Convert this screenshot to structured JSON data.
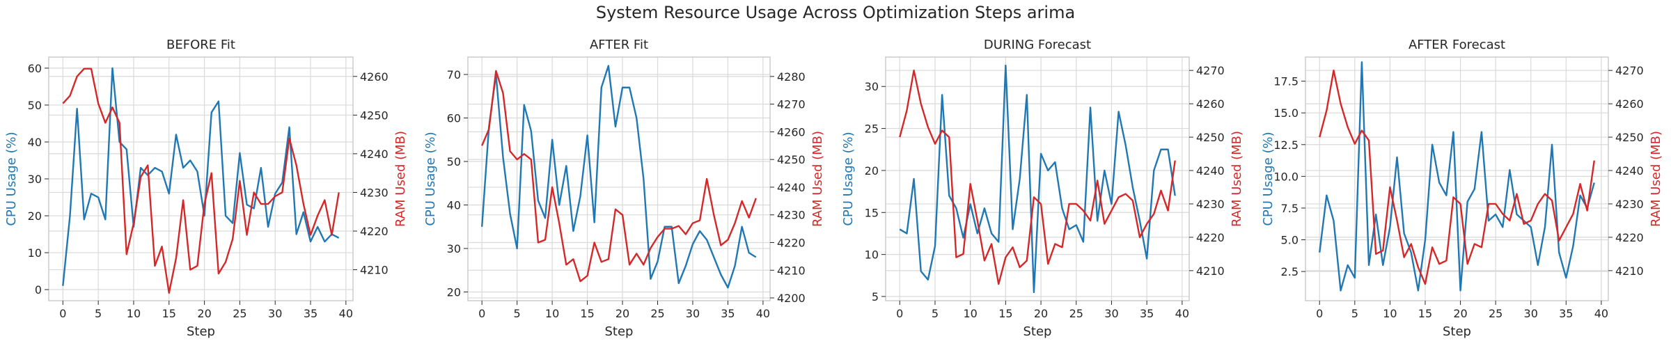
{
  "figure": {
    "title": "System Resource Usage Across Optimization Steps arima"
  },
  "colors": {
    "cpu": "#1f77b4",
    "ram": "#d62728",
    "grid": "#d9d9d9",
    "spine": "#cccccc",
    "text": "#262626"
  },
  "chart_data": [
    {
      "type": "line",
      "title": "BEFORE Fit",
      "xlabel": "Step",
      "ylabel": "CPU Usage (%)",
      "y2label": "RAM Used (MB)",
      "xlim": [
        -2,
        41
      ],
      "ylim": [
        -3,
        63
      ],
      "y2lim": [
        4202,
        4265
      ],
      "xticks": [
        0,
        5,
        10,
        15,
        20,
        25,
        30,
        35,
        40
      ],
      "yticks": [
        0,
        10,
        20,
        30,
        40,
        50,
        60
      ],
      "y2ticks": [
        4210,
        4220,
        4230,
        4240,
        4250,
        4260
      ],
      "grid": true,
      "series": [
        {
          "name": "CPU Usage (%)",
          "axis": "left",
          "values": [
            1,
            20,
            49,
            19,
            26,
            25,
            19,
            60,
            40,
            38,
            17,
            33,
            31,
            33,
            32,
            26,
            42,
            33,
            35,
            32,
            20,
            48,
            51,
            20,
            18,
            37,
            23,
            22,
            33,
            17,
            26,
            29,
            44,
            15,
            21,
            13,
            17,
            13,
            15,
            14
          ]
        },
        {
          "name": "RAM Used (MB)",
          "axis": "right",
          "values": [
            4253,
            4255,
            4260,
            4262,
            4262,
            4253,
            4248,
            4252,
            4248,
            4214,
            4222,
            4234,
            4237,
            4211,
            4216,
            4204,
            4213,
            4228,
            4210,
            4211,
            4227,
            4235,
            4209,
            4212,
            4218,
            4233,
            4219,
            4230,
            4227,
            4227,
            4229,
            4230,
            4244,
            4237,
            4227,
            4219,
            4224,
            4228,
            4219,
            4230
          ]
        }
      ]
    },
    {
      "type": "line",
      "title": "AFTER Fit",
      "xlabel": "Step",
      "ylabel": "CPU Usage (%)",
      "y2label": "RAM Used (MB)",
      "xlim": [
        -2,
        41
      ],
      "ylim": [
        18,
        74
      ],
      "y2lim": [
        4199,
        4287
      ],
      "xticks": [
        0,
        5,
        10,
        15,
        20,
        25,
        30,
        35,
        40
      ],
      "yticks": [
        20,
        30,
        40,
        50,
        60,
        70
      ],
      "y2ticks": [
        4200,
        4210,
        4220,
        4230,
        4240,
        4250,
        4260,
        4270,
        4280
      ],
      "grid": true,
      "series": [
        {
          "name": "CPU Usage (%)",
          "axis": "left",
          "values": [
            35,
            58,
            70,
            51,
            38,
            30,
            63,
            57,
            41,
            37,
            55,
            40,
            49,
            34,
            42,
            56,
            36,
            67,
            72,
            58,
            67,
            67,
            60,
            46,
            23,
            27,
            35,
            35,
            22,
            26,
            31,
            34,
            32,
            28,
            24,
            21,
            26,
            35,
            29,
            28
          ]
        },
        {
          "name": "RAM Used (MB)",
          "axis": "right",
          "values": [
            4255,
            4261,
            4282,
            4274,
            4253,
            4250,
            4252,
            4250,
            4220,
            4221,
            4240,
            4227,
            4212,
            4214,
            4206,
            4208,
            4220,
            4213,
            4214,
            4232,
            4230,
            4212,
            4216,
            4212,
            4218,
            4222,
            4225,
            4225,
            4226,
            4223,
            4227,
            4228,
            4243,
            4230,
            4219,
            4221,
            4227,
            4235,
            4229,
            4236
          ]
        }
      ]
    },
    {
      "type": "line",
      "title": "DURING Forecast",
      "xlabel": "Step",
      "ylabel": "CPU Usage (%)",
      "y2label": "RAM Used (MB)",
      "xlim": [
        -2,
        41
      ],
      "ylim": [
        4.5,
        33.5
      ],
      "y2lim": [
        4201,
        4274
      ],
      "xticks": [
        0,
        5,
        10,
        15,
        20,
        25,
        30,
        35,
        40
      ],
      "yticks": [
        5,
        10,
        15,
        20,
        25,
        30
      ],
      "y2ticks": [
        4210,
        4220,
        4230,
        4240,
        4250,
        4260,
        4270
      ],
      "grid": true,
      "series": [
        {
          "name": "CPU Usage (%)",
          "axis": "left",
          "values": [
            13,
            12.5,
            19,
            8,
            7,
            11,
            29,
            17,
            15.5,
            12,
            16,
            12.5,
            15.5,
            12.5,
            11.5,
            32.5,
            13,
            19,
            29,
            5.5,
            22,
            20,
            21,
            15.5,
            13,
            13.5,
            11.5,
            27.5,
            14,
            20,
            16,
            27,
            23,
            18,
            14,
            9.5,
            20,
            22.5,
            22.5,
            17
          ]
        },
        {
          "name": "RAM Used (MB)",
          "axis": "right",
          "values": [
            4250,
            4258,
            4270,
            4260,
            4253,
            4248,
            4252,
            4250,
            4214,
            4215,
            4236,
            4225,
            4213,
            4218,
            4206,
            4214,
            4217,
            4211,
            4213,
            4232,
            4230,
            4212,
            4218,
            4217,
            4230,
            4230,
            4228,
            4225,
            4237,
            4224,
            4228,
            4232,
            4233,
            4231,
            4220,
            4224,
            4227,
            4234,
            4228,
            4243
          ]
        }
      ]
    },
    {
      "type": "line",
      "title": "AFTER Forecast",
      "xlabel": "Step",
      "ylabel": "CPU Usage (%)",
      "y2label": "RAM Used (MB)",
      "xlim": [
        -2,
        41
      ],
      "ylim": [
        0.2,
        19.4
      ],
      "y2lim": [
        4201,
        4274
      ],
      "xticks": [
        0,
        5,
        10,
        15,
        20,
        25,
        30,
        35,
        40
      ],
      "yticks": [
        2.5,
        5.0,
        7.5,
        10.0,
        12.5,
        15.0,
        17.5
      ],
      "y2ticks": [
        4210,
        4220,
        4230,
        4240,
        4250,
        4260,
        4270
      ],
      "grid": true,
      "series": [
        {
          "name": "CPU Usage (%)",
          "axis": "left",
          "values": [
            4,
            8.5,
            6.5,
            1,
            3,
            2,
            19,
            3,
            7,
            3,
            6,
            11.5,
            5.5,
            4,
            1,
            5,
            12.5,
            9.5,
            8.5,
            13.5,
            1,
            8,
            9,
            13.5,
            6.5,
            7,
            6,
            10.5,
            7,
            6.5,
            6,
            3,
            6,
            12.5,
            4,
            2,
            4.5,
            8.5,
            7.5,
            9.5
          ]
        },
        {
          "name": "RAM Used (MB)",
          "axis": "right",
          "values": [
            4250,
            4258,
            4270,
            4260,
            4253,
            4248,
            4252,
            4249,
            4215,
            4216,
            4235,
            4225,
            4214,
            4218,
            4211,
            4206,
            4217,
            4212,
            4213,
            4232,
            4230,
            4212,
            4218,
            4217,
            4230,
            4230,
            4227,
            4225,
            4233,
            4224,
            4225,
            4230,
            4233,
            4231,
            4219,
            4223,
            4227,
            4236,
            4228,
            4243
          ]
        }
      ]
    }
  ]
}
